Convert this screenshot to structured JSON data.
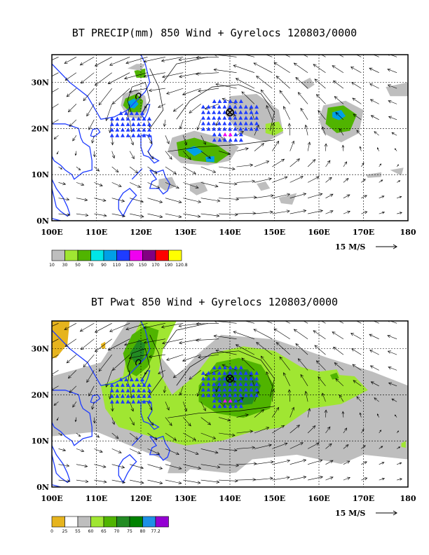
{
  "panels": [
    {
      "title": "BT PRECIP(mm) 850 Wind + Gyrelocs 120803/0000",
      "lon_labels": [
        "100E",
        "110E",
        "120E",
        "130E",
        "140E",
        "150E",
        "160E",
        "170E",
        "180"
      ],
      "lat_labels": [
        "30N",
        "20N",
        "10N",
        "0N"
      ],
      "scale_label": "15 M/S",
      "legend": {
        "colors": [
          "#bebebe",
          "#a0e632",
          "#50b400",
          "#00e6e6",
          "#00a0e6",
          "#1e3cff",
          "#f000f0",
          "#820082",
          "#ff0000",
          "#ffff00"
        ],
        "labels": [
          "10",
          "30",
          "50",
          "70",
          "90",
          "110",
          "130",
          "150",
          "170",
          "190",
          "120.8"
        ]
      }
    },
    {
      "title": "BT Pwat 850 Wind + Gyrelocs 120803/0000",
      "lon_labels": [
        "100E",
        "110E",
        "120E",
        "130E",
        "140E",
        "150E",
        "160E",
        "170E",
        "180"
      ],
      "lat_labels": [
        "30N",
        "20N",
        "10N",
        "0N"
      ],
      "scale_label": "15 M/S",
      "legend": {
        "colors": [
          "#e6b41e",
          "#ffffff",
          "#bebebe",
          "#a0e632",
          "#50b400",
          "#228b22",
          "#008200",
          "#1e90e6",
          "#9400d3"
        ],
        "labels": [
          "0",
          "25",
          "55",
          "60",
          "65",
          "70",
          "75",
          "80",
          "77.2"
        ]
      }
    }
  ],
  "map_data": {
    "lon_range": [
      100,
      180
    ],
    "lat_range": [
      0,
      36
    ],
    "gyre_center": {
      "lon": 140,
      "lat": 23.5
    },
    "secondary_center": {
      "lon": 119.5,
      "lat": 27
    },
    "colors": {
      "coast": "#1e3cff",
      "triangle": "#1e3cff",
      "marker": "#f000f0"
    }
  }
}
